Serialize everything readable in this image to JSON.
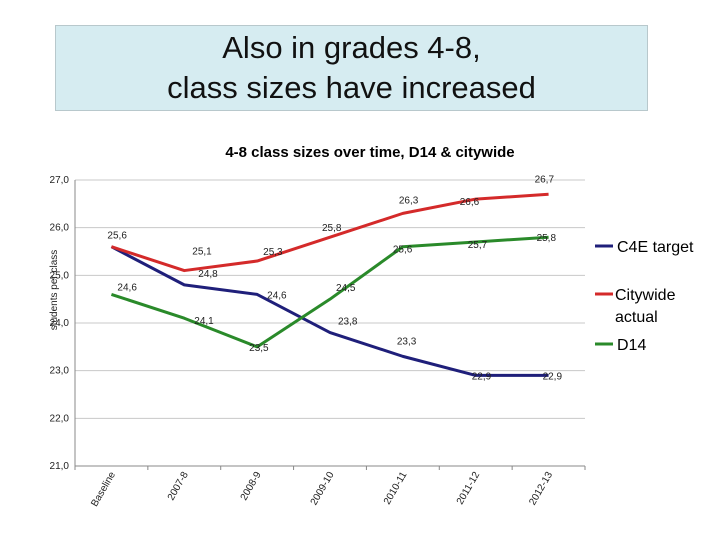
{
  "slide": {
    "title_line1": "Also in grades 4-8,",
    "title_line2": "class sizes have increased"
  },
  "chart_data": {
    "type": "line",
    "title": "4-8 class sizes over time, D14 & citywide",
    "xlabel": "",
    "ylabel": "students per class",
    "ylim": [
      21.0,
      27.0
    ],
    "yticks": [
      "21,0",
      "22,0",
      "23,0",
      "24,0",
      "25,0",
      "26,0",
      "27,0"
    ],
    "categories": [
      "Baseline",
      "2007-8",
      "2008-9",
      "2009-10",
      "2010-11",
      "2011-12",
      "2012-13"
    ],
    "series": [
      {
        "name": "C4E target",
        "color": "#1f1f7a",
        "values": [
          25.6,
          24.8,
          24.6,
          23.8,
          23.3,
          22.9,
          22.9
        ],
        "labels": [
          "",
          "24,8",
          "",
          "23,8",
          "23,3",
          "22,9",
          "22,9"
        ]
      },
      {
        "name": "Citywide actual",
        "color": "#d42a2a",
        "values": [
          25.6,
          25.1,
          25.3,
          25.8,
          26.3,
          26.6,
          26.7
        ],
        "labels": [
          "25,6",
          "25,1",
          "25,3",
          "25,8",
          "26,3",
          "26,6",
          "26,7"
        ]
      },
      {
        "name": "D14",
        "color": "#2a8a2a",
        "values": [
          24.6,
          24.1,
          23.5,
          24.5,
          25.6,
          25.7,
          25.8
        ],
        "labels": [
          "24,6",
          "24,1",
          "23,5",
          "24,5",
          "25,6",
          "25,7",
          "25,8"
        ]
      }
    ],
    "extra_labels": [
      "24,6"
    ],
    "legend_position": "right"
  }
}
